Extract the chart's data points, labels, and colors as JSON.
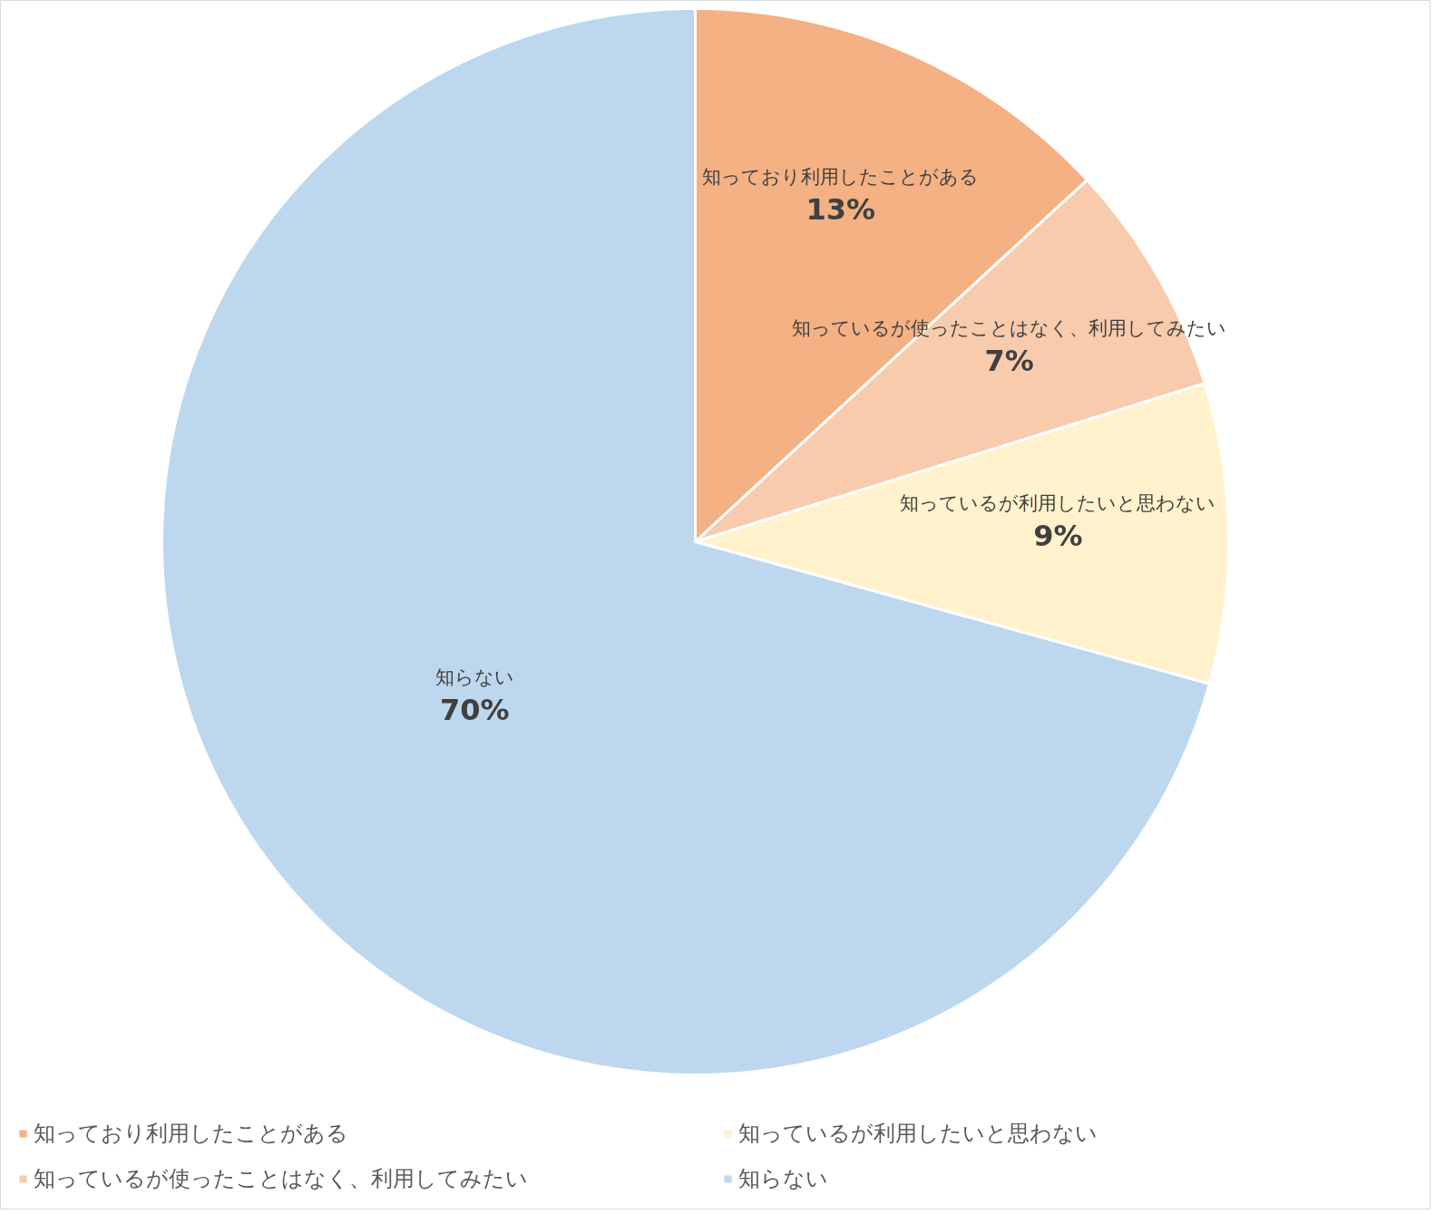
{
  "chart_data": {
    "type": "pie",
    "categories": [
      "知っており利用したことがある",
      "知っているが使ったことはなく、利用してみたい",
      "知っているが利用したいと思わない",
      "知らない"
    ],
    "values": [
      13,
      7,
      9,
      70
    ],
    "value_labels": [
      "13%",
      "7%",
      "9%",
      "70%"
    ],
    "colors": [
      "#f4b183",
      "#f8cbad",
      "#fff2cc",
      "#bdd7ee"
    ],
    "legend": "bottom"
  }
}
